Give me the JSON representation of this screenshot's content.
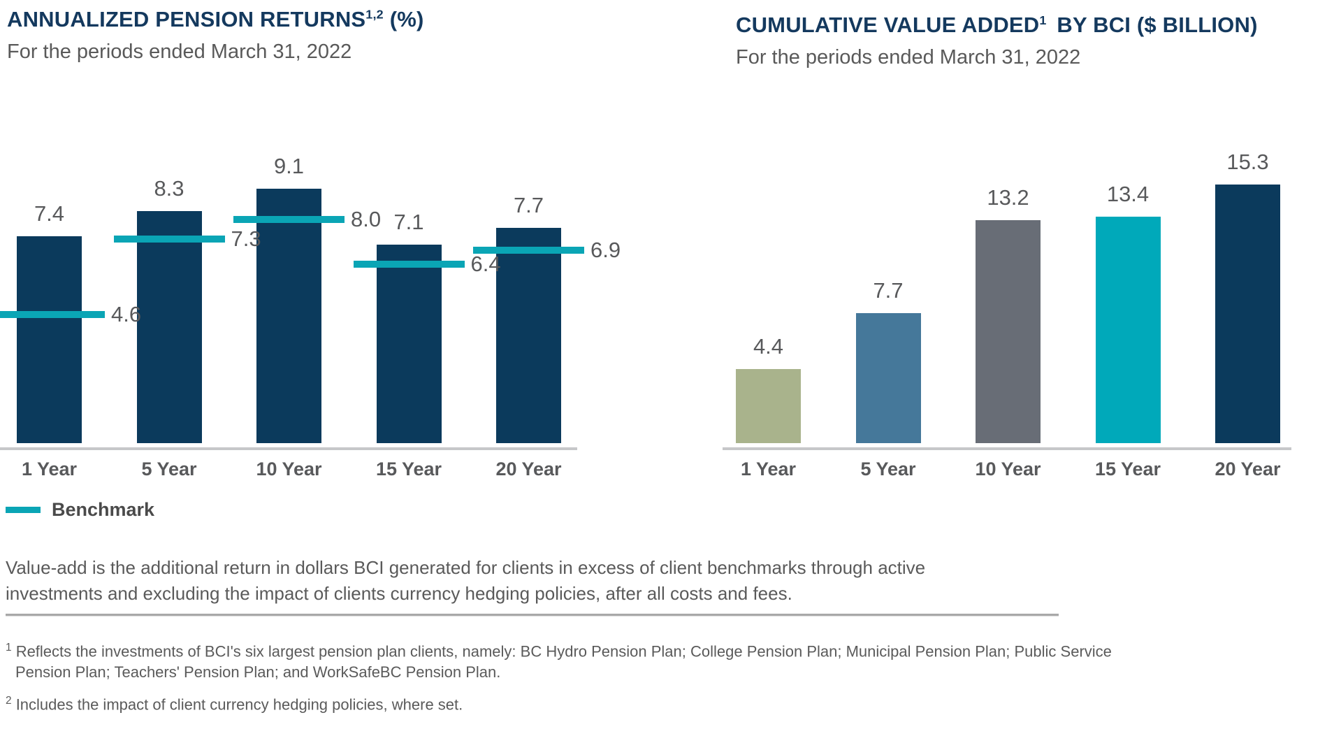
{
  "chart_data": [
    {
      "type": "bar",
      "title_main": "ANNUALIZED PENSION RETURNS",
      "title_sup": "1,2",
      "title_suffix": " (%)",
      "subtitle": "For the periods ended March 31, 2022",
      "categories": [
        "1 Year",
        "5 Year",
        "10 Year",
        "15 Year",
        "20 Year"
      ],
      "series": [
        {
          "name": "Annualized pension returns",
          "values": [
            7.4,
            8.3,
            9.1,
            7.1,
            7.7
          ]
        },
        {
          "name": "Benchmark",
          "values": [
            4.6,
            7.3,
            8.0,
            6.4,
            6.9
          ]
        }
      ],
      "bar_color": "#0b3a5c",
      "benchmark_color": "#0aa5b5",
      "legend": {
        "label": "Benchmark",
        "position": "bottom-left"
      },
      "ylim": [
        0,
        10
      ],
      "grid": false,
      "xlabel": "",
      "ylabel": ""
    },
    {
      "type": "bar",
      "title_main": "CUMULATIVE VALUE ADDED",
      "title_sup": "1",
      "title_suffix": " BY BCI ($ BILLION)",
      "subtitle": "For the periods ended March 31, 2022",
      "categories": [
        "1 Year",
        "5 Year",
        "10 Year",
        "15 Year",
        "20 Year"
      ],
      "values": [
        4.4,
        7.7,
        13.2,
        13.4,
        15.3
      ],
      "bar_colors": [
        "#a9b38c",
        "#45789a",
        "#686d76",
        "#00a9ba",
        "#0b3a5c"
      ],
      "ylim": [
        0,
        16.5
      ],
      "grid": false,
      "xlabel": "",
      "ylabel": ""
    }
  ],
  "notes": {
    "value_add_note": "Value-add is the additional return in dollars BCI generated for clients in excess of client benchmarks through active investments and excluding the impact of clients currency hedging policies, after all costs and fees.",
    "footnotes": [
      {
        "sup": "1",
        "text": "Reflects the investments of BCI's six largest pension plan clients, namely: BC Hydro Pension Plan; College Pension Plan; Municipal Pension Plan; Public Service Pension Plan; Teachers' Pension Plan; and WorkSafeBC Pension Plan."
      },
      {
        "sup": "2",
        "text": "Includes the impact of client currency hedging policies, where set."
      }
    ]
  },
  "colors": {
    "title_navy": "#14395e",
    "bar_navy": "#0b3a5c",
    "benchmark_teal": "#0aa5b5",
    "sage_green": "#a9b38c",
    "steel_blue": "#45789a",
    "mid_gray": "#686d76",
    "teal_bar": "#00a9ba",
    "axis_gray": "#c6c7c9",
    "text_gray": "#58595b"
  }
}
